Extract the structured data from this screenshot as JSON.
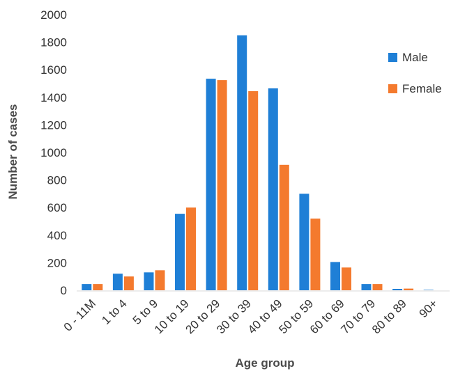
{
  "chart_data": {
    "type": "bar",
    "title": "",
    "xlabel": "Age group",
    "ylabel": "Number of cases",
    "ylim": [
      0,
      2000
    ],
    "yticks": [
      0,
      200,
      400,
      600,
      800,
      1000,
      1200,
      1400,
      1600,
      1800,
      2000
    ],
    "categories": [
      "0 - 11M",
      "1 to 4",
      "5 to 9",
      "10 to 19",
      "20 to 29",
      "30 to 39",
      "40 to 49",
      "50 to 59",
      "60 to 69",
      "70 to 79",
      "80 to 89",
      "90+"
    ],
    "series": [
      {
        "name": "Male",
        "color": "#1f7fd6",
        "values": [
          45,
          120,
          130,
          555,
          1535,
          1850,
          1465,
          700,
          205,
          45,
          10,
          3
        ]
      },
      {
        "name": "Female",
        "color": "#f47a2e",
        "values": [
          45,
          100,
          145,
          600,
          1525,
          1445,
          910,
          520,
          165,
          45,
          12,
          0
        ]
      }
    ],
    "grid": false,
    "legend": "top-right"
  }
}
